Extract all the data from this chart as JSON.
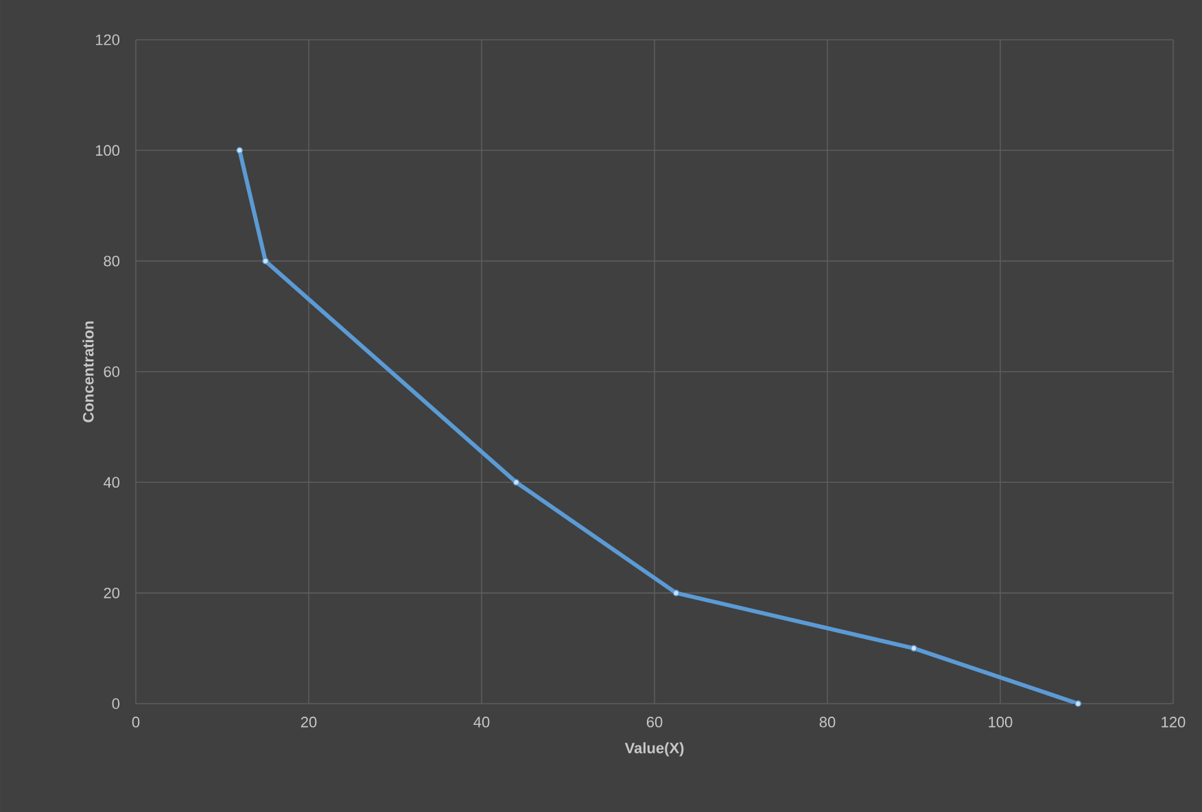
{
  "chart_data": {
    "type": "line",
    "xlabel": "Value(X)",
    "ylabel": "Concentration",
    "x": [
      12,
      15,
      44,
      62.5,
      90,
      109
    ],
    "series": [
      {
        "color": "#5b9bd5",
        "values": [
          100,
          80,
          40,
          20,
          10,
          0
        ]
      }
    ],
    "xlim": [
      0,
      120
    ],
    "ylim": [
      0,
      120
    ],
    "xticks": [
      0,
      20,
      40,
      60,
      80,
      100,
      120
    ],
    "yticks": [
      0,
      20,
      40,
      60,
      80,
      100,
      120
    ],
    "grid": true,
    "marker": "circle",
    "line_style": "solid"
  }
}
